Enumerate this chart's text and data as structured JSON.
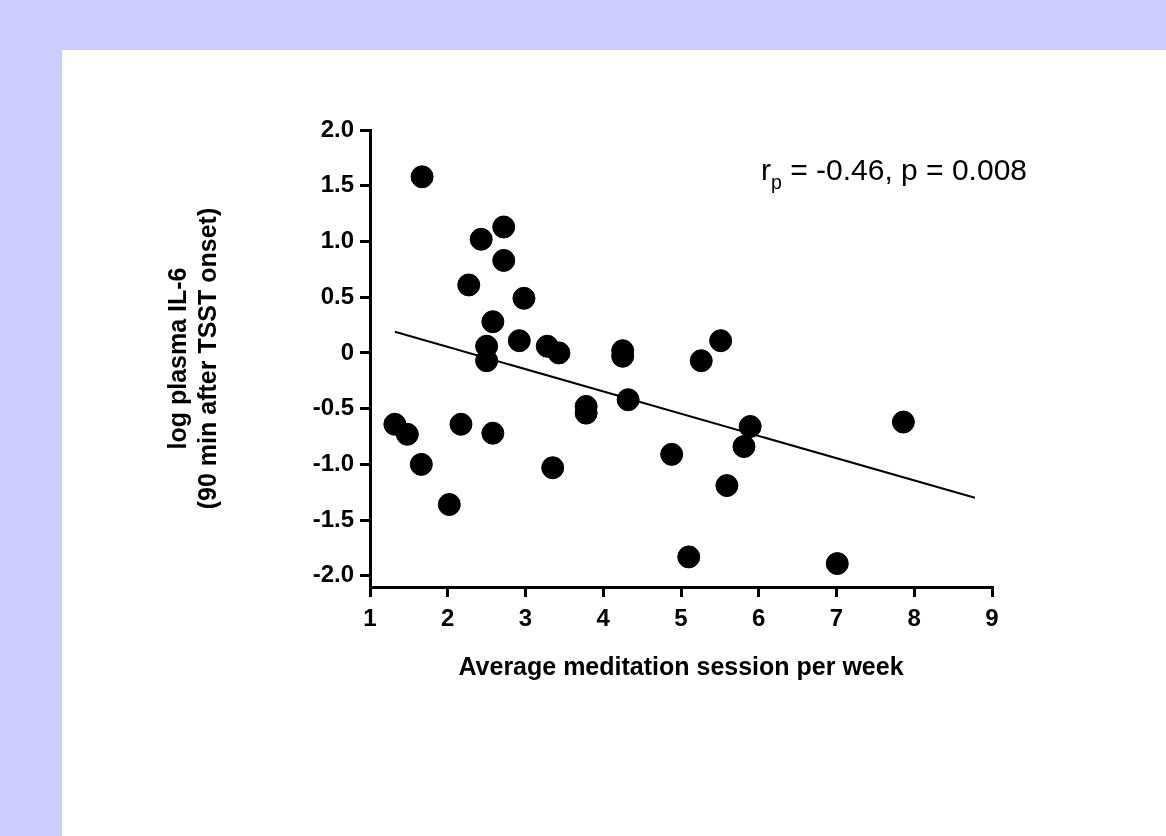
{
  "chart_data": {
    "type": "scatter",
    "xlabel": "Average meditation session per week",
    "ylabel": "log plasma IL-6\n(90 min after TSST onset)",
    "annotations": [
      "r$_{p}$ = -0.46, p = 0.008"
    ],
    "xlim": [
      1,
      9
    ],
    "ylim": [
      -2.1,
      2
    ],
    "xticks": [
      1,
      2,
      3,
      4,
      5,
      6,
      7,
      8,
      9
    ],
    "yticks": [
      {
        "value": 2,
        "label": "2.0"
      },
      {
        "value": 1.5,
        "label": "1.5"
      },
      {
        "value": 1,
        "label": "1.0"
      },
      {
        "value": 0.5,
        "label": "0.5"
      },
      0,
      {
        "value": -0.5,
        "label": "-0.5"
      },
      {
        "value": -1,
        "label": "-1.0"
      },
      {
        "value": -1.5,
        "label": "-1.5"
      },
      {
        "value": -2,
        "label": "-2.0"
      }
    ],
    "series": [
      {
        "marker": "circle",
        "color": "#000000",
        "x": [
          1.67,
          1.32,
          1.48,
          1.66,
          2.02,
          2.17,
          2.27,
          2.43,
          2.72,
          2.72,
          2.98,
          2.58,
          2.5,
          2.5,
          2.58,
          2.92,
          3.28,
          3.43,
          3.35,
          3.78,
          3.78,
          4.25,
          4.25,
          4.32,
          4.88,
          5.1,
          5.26,
          5.51,
          5.59,
          5.81,
          5.89,
          7.01,
          7.86
        ],
        "values": [
          1.58,
          -0.64,
          -0.73,
          -1.0,
          -1.36,
          -0.64,
          0.61,
          1.02,
          1.13,
          0.83,
          0.49,
          0.28,
          0.06,
          -0.07,
          -0.72,
          0.11,
          0.06,
          0.0,
          -1.03,
          -0.48,
          -0.54,
          0.02,
          -0.03,
          -0.42,
          -0.91,
          -1.83,
          -0.07,
          0.11,
          -1.19,
          -0.84,
          -0.66,
          -1.89,
          -0.62
        ]
      },
      {
        "type": "line",
        "marker": "none",
        "color": "#000000",
        "x": [
          1.32,
          8.78
        ],
        "values": [
          0.19,
          -1.3
        ]
      }
    ]
  }
}
